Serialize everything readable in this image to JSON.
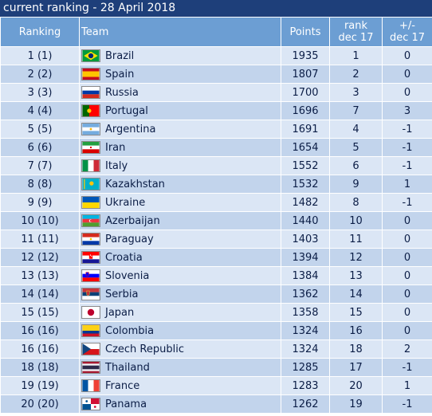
{
  "title": "current ranking - 28 April 2018",
  "headers": {
    "ranking": "Ranking",
    "team": "Team",
    "points": "Points",
    "rank_dec17_line1": "rank",
    "rank_dec17_line2": "dec 17",
    "change_line1": "+/-",
    "change_line2": "dec 17"
  },
  "rows": [
    {
      "ranking": "1 (1)",
      "team": "Brazil",
      "flag": "brazil-flag-icon",
      "points": "1935",
      "rank_dec17": "1",
      "change": "0"
    },
    {
      "ranking": "2 (2)",
      "team": "Spain",
      "flag": "spain-flag-icon",
      "points": "1807",
      "rank_dec17": "2",
      "change": "0"
    },
    {
      "ranking": "3 (3)",
      "team": "Russia",
      "flag": "russia-flag-icon",
      "points": "1700",
      "rank_dec17": "3",
      "change": "0"
    },
    {
      "ranking": "4 (4)",
      "team": "Portugal",
      "flag": "portugal-flag-icon",
      "points": "1696",
      "rank_dec17": "7",
      "change": "3"
    },
    {
      "ranking": "5 (5)",
      "team": "Argentina",
      "flag": "argentina-flag-icon",
      "points": "1691",
      "rank_dec17": "4",
      "change": "-1"
    },
    {
      "ranking": "6 (6)",
      "team": "Iran",
      "flag": "iran-flag-icon",
      "points": "1654",
      "rank_dec17": "5",
      "change": "-1"
    },
    {
      "ranking": "7 (7)",
      "team": "Italy",
      "flag": "italy-flag-icon",
      "points": "1552",
      "rank_dec17": "6",
      "change": "-1"
    },
    {
      "ranking": "8 (8)",
      "team": "Kazakhstan",
      "flag": "kazakhstan-flag-icon",
      "points": "1532",
      "rank_dec17": "9",
      "change": "1"
    },
    {
      "ranking": "9 (9)",
      "team": "Ukraine",
      "flag": "ukraine-flag-icon",
      "points": "1482",
      "rank_dec17": "8",
      "change": "-1"
    },
    {
      "ranking": "10 (10)",
      "team": "Azerbaijan",
      "flag": "azerbaijan-flag-icon",
      "points": "1440",
      "rank_dec17": "10",
      "change": "0"
    },
    {
      "ranking": "11 (11)",
      "team": "Paraguay",
      "flag": "paraguay-flag-icon",
      "points": "1403",
      "rank_dec17": "11",
      "change": "0"
    },
    {
      "ranking": "12 (12)",
      "team": "Croatia",
      "flag": "croatia-flag-icon",
      "points": "1394",
      "rank_dec17": "12",
      "change": "0"
    },
    {
      "ranking": "13 (13)",
      "team": "Slovenia",
      "flag": "slovenia-flag-icon",
      "points": "1384",
      "rank_dec17": "13",
      "change": "0"
    },
    {
      "ranking": "14 (14)",
      "team": "Serbia",
      "flag": "serbia-flag-icon",
      "points": "1362",
      "rank_dec17": "14",
      "change": "0"
    },
    {
      "ranking": "15 (15)",
      "team": "Japan",
      "flag": "japan-flag-icon",
      "points": "1358",
      "rank_dec17": "15",
      "change": "0"
    },
    {
      "ranking": "16 (16)",
      "team": "Colombia",
      "flag": "colombia-flag-icon",
      "points": "1324",
      "rank_dec17": "16",
      "change": "0"
    },
    {
      "ranking": "16 (16)",
      "team": "Czech Republic",
      "flag": "czech-republic-flag-icon",
      "points": "1324",
      "rank_dec17": "18",
      "change": "2"
    },
    {
      "ranking": "18 (18)",
      "team": "Thailand",
      "flag": "thailand-flag-icon",
      "points": "1285",
      "rank_dec17": "17",
      "change": "-1"
    },
    {
      "ranking": "19 (19)",
      "team": "France",
      "flag": "france-flag-icon",
      "points": "1283",
      "rank_dec17": "20",
      "change": "1"
    },
    {
      "ranking": "20 (20)",
      "team": "Panama",
      "flag": "panama-flag-icon",
      "points": "1262",
      "rank_dec17": "19",
      "change": "-1"
    }
  ]
}
